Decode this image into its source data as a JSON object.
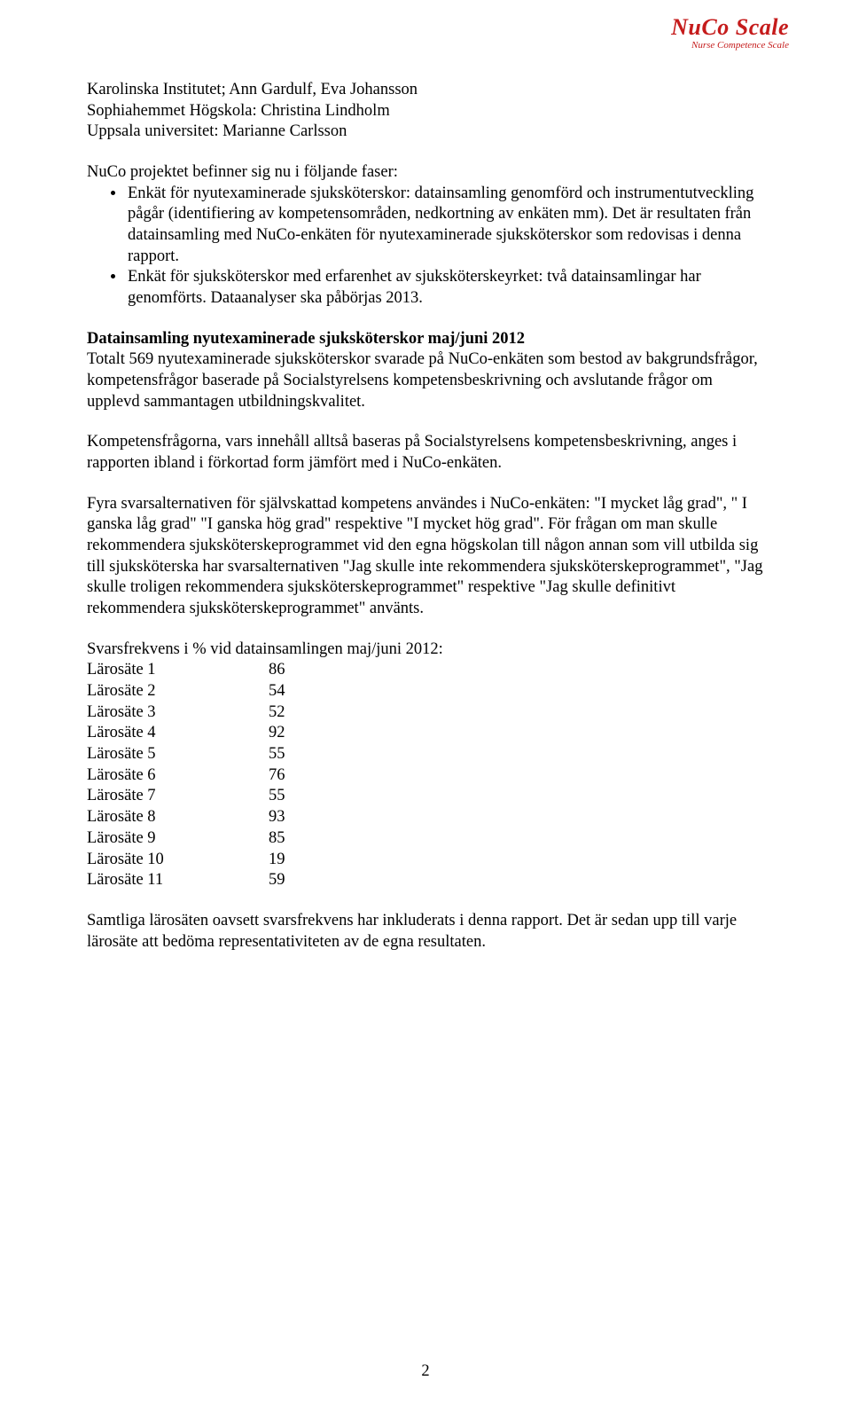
{
  "logo": {
    "main": "NuCo Scale",
    "sub": "Nurse Competence Scale",
    "color": "#c51b1b"
  },
  "intro": {
    "line1": "Karolinska Institutet; Ann Gardulf, Eva Johansson",
    "line2": "Sophiahemmet Högskola: Christina Lindholm",
    "line3": "Uppsala universitet: Marianne Carlsson"
  },
  "phases_lead": "NuCo projektet befinner sig nu i följande faser:",
  "bullets": [
    "Enkät för nyutexaminerade sjuksköterskor: datainsamling genomförd och instrumentutveckling pågår (identifiering av kompetensområden, nedkortning av enkäten mm). Det är resultaten från datainsamling med NuCo-enkäten för nyutexaminerade sjuksköterskor som redovisas i denna rapport.",
    "Enkät för sjuksköterskor med erfarenhet av sjuksköterskeyrket: två datainsamlingar har genomförts. Dataanalyser ska påbörjas 2013."
  ],
  "section_heading": "Datainsamling nyutexaminerade sjuksköterskor maj/juni 2012",
  "section_body": "Totalt 569 nyutexaminerade sjuksköterskor svarade på NuCo-enkäten som bestod av bakgrundsfrågor, kompetensfrågor baserade på Socialstyrelsens kompetensbeskrivning och avslutande frågor om upplevd sammantagen utbildningskvalitet.",
  "para_comp": "Kompetensfrågorna, vars innehåll alltså baseras på Socialstyrelsens kompetensbeskrivning, anges i rapporten ibland i förkortad form jämfört med i NuCo-enkäten.",
  "para_alt": "Fyra svarsalternativen för självskattad kompetens användes i NuCo-enkäten: \"I mycket låg grad\", \" I ganska låg grad\" \"I ganska hög grad\" respektive \"I mycket hög grad\". För frågan om man skulle rekommendera sjuksköterskeprogrammet vid den egna högskolan till någon annan som vill utbilda sig till sjuksköterska har svarsalternativen \"Jag skulle inte rekommendera sjuksköterskeprogrammet\", \"Jag skulle troligen rekommendera sjuksköterskeprogrammet\" respektive \"Jag skulle definitivt rekommendera sjuksköterskeprogrammet\" använts.",
  "freq_heading": "Svarsfrekvens i % vid datainsamlingen maj/juni 2012:",
  "freq_rows": [
    {
      "label": "Lärosäte 1",
      "value": "86"
    },
    {
      "label": "Lärosäte 2",
      "value": "54"
    },
    {
      "label": "Lärosäte 3",
      "value": "52"
    },
    {
      "label": "Lärosäte 4",
      "value": "92"
    },
    {
      "label": "Lärosäte 5",
      "value": "55"
    },
    {
      "label": "Lärosäte 6",
      "value": "76"
    },
    {
      "label": "Lärosäte 7",
      "value": "55"
    },
    {
      "label": "Lärosäte 8",
      "value": "93"
    },
    {
      "label": "Lärosäte 9",
      "value": "85"
    },
    {
      "label": "Lärosäte 10",
      "value": "19"
    },
    {
      "label": "Lärosäte 11",
      "value": "59"
    }
  ],
  "closing": "Samtliga lärosäten oavsett svarsfrekvens har inkluderats i denna rapport. Det är sedan upp till varje lärosäte att bedöma representativiteten av de egna resultaten.",
  "page_number": "2"
}
